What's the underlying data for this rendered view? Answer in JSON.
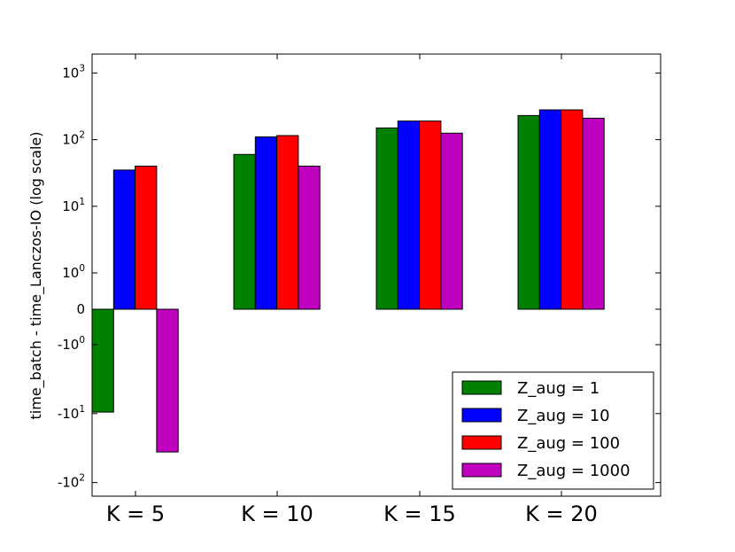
{
  "chart_data": {
    "type": "bar",
    "yscale": "symlog",
    "ylabel": "time_batch - time_Lanczos-IO (log scale)",
    "xlabel": "",
    "title": "",
    "categories": [
      "K = 5",
      "K = 10",
      "K = 15",
      "K = 20"
    ],
    "ylim": [
      -100,
      1000
    ],
    "yticks": [
      {
        "value": 1000,
        "base": "10",
        "exp": "3"
      },
      {
        "value": 100,
        "base": "10",
        "exp": "2"
      },
      {
        "value": 10,
        "base": "10",
        "exp": "1"
      },
      {
        "value": 1,
        "base": "10",
        "exp": "0"
      },
      {
        "value": 0,
        "base": "0",
        "exp": ""
      },
      {
        "value": -1,
        "base": "-10",
        "exp": "0"
      },
      {
        "value": -10,
        "base": "-10",
        "exp": "1"
      },
      {
        "value": -100,
        "base": "-10",
        "exp": "2"
      }
    ],
    "series": [
      {
        "name": "Z_aug = 1",
        "color": "#008000",
        "values": [
          -9.5,
          60,
          150,
          230
        ]
      },
      {
        "name": "Z_aug = 10",
        "color": "#0000ff",
        "values": [
          35,
          110,
          190,
          280
        ]
      },
      {
        "name": "Z_aug = 100",
        "color": "#ff0000",
        "values": [
          40,
          115,
          190,
          280
        ]
      },
      {
        "name": "Z_aug = 1000",
        "color": "#bf00bf",
        "values": [
          -36,
          40,
          125,
          210
        ]
      }
    ],
    "legend": {
      "position": "lower-right"
    },
    "grid": false
  }
}
